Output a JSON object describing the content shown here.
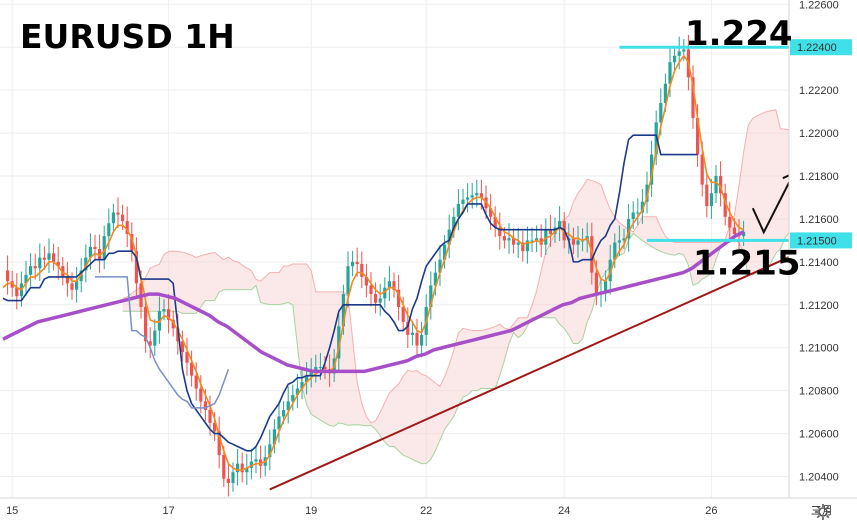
{
  "chart_data": {
    "type": "candlestick",
    "title": "EURUSD 1H",
    "ylim": [
      1.203,
      1.2262
    ],
    "y_ticks": [
      "1.22600",
      "1.22400",
      "1.22200",
      "1.22000",
      "1.21800",
      "1.21600",
      "1.21400",
      "1.21200",
      "1.21000",
      "1.20800",
      "1.20600",
      "1.20400"
    ],
    "y_tick_values": [
      1.226,
      1.224,
      1.222,
      1.22,
      1.218,
      1.216,
      1.214,
      1.212,
      1.21,
      1.208,
      1.206,
      1.204
    ],
    "x_ticks": [
      "15",
      "17",
      "19",
      "22",
      "24",
      "26",
      "三月"
    ],
    "x_tick_index": [
      2,
      36,
      67,
      92,
      122,
      154,
      178
    ],
    "levels": [
      {
        "label": "1.22400",
        "value": 1.224,
        "annotation": "1.224",
        "color": "#40e0e8",
        "x_from_index": 134,
        "x_to_index": 194
      },
      {
        "label": "1.21500",
        "value": 1.215,
        "annotation": "1.215",
        "color": "#40e0e8",
        "x_from_index": 140,
        "x_to_index": 194
      }
    ],
    "trendline": {
      "color": "#a01818",
      "points": [
        [
          58,
          1.2034
        ],
        [
          179,
          1.215
        ]
      ]
    },
    "candles": {
      "up_color": "#26a69a",
      "down_color": "#ef5350",
      "close": [
        1.2136,
        1.2131,
        1.2128,
        1.2124,
        1.213,
        1.2134,
        1.2138,
        1.2137,
        1.2142,
        1.2141,
        1.2144,
        1.214,
        1.2138,
        1.2133,
        1.213,
        1.2127,
        1.2131,
        1.2136,
        1.2142,
        1.2147,
        1.2146,
        1.2141,
        1.2152,
        1.2158,
        1.2163,
        1.2162,
        1.2159,
        1.2153,
        1.2145,
        1.213,
        1.2119,
        1.2103,
        1.2101,
        1.2108,
        1.2117,
        1.2118,
        1.2113,
        1.2109,
        1.2103,
        1.2098,
        1.2093,
        1.2087,
        1.2081,
        1.2075,
        1.2071,
        1.2065,
        1.2061,
        1.205,
        1.2039,
        1.2037,
        1.2042,
        1.2046,
        1.2042,
        1.2044,
        1.2047,
        1.2048,
        1.2045,
        1.2049,
        1.2055,
        1.2062,
        1.2068,
        1.2071,
        1.2075,
        1.2078,
        1.2081,
        1.2084,
        1.2087,
        1.2089,
        1.2091,
        1.2091,
        1.209,
        1.2088,
        1.2095,
        1.211,
        1.2125,
        1.2138,
        1.214,
        1.2139,
        1.2133,
        1.2129,
        1.2125,
        1.2121,
        1.2123,
        1.2128,
        1.2131,
        1.2127,
        1.2119,
        1.2112,
        1.2106,
        1.2107,
        1.2101,
        1.2106,
        1.2119,
        1.2129,
        1.2135,
        1.2141,
        1.2148,
        1.2155,
        1.2161,
        1.2167,
        1.2169,
        1.217,
        1.2171,
        1.2172,
        1.217,
        1.2165,
        1.2161,
        1.2156,
        1.2152,
        1.215,
        1.2151,
        1.2148,
        1.2149,
        1.2145,
        1.215,
        1.215,
        1.2151,
        1.2148,
        1.2155,
        1.2153,
        1.2156,
        1.2159,
        1.215,
        1.2151,
        1.2148,
        1.215,
        1.215,
        1.2152,
        1.2135,
        1.2125,
        1.2126,
        1.2131,
        1.2141,
        1.2149,
        1.215,
        1.2151,
        1.216,
        1.2163,
        1.2163,
        1.2168,
        1.2176,
        1.219,
        1.2205,
        1.2214,
        1.2223,
        1.2233,
        1.2236,
        1.2238,
        1.2239,
        1.2226,
        1.2207,
        1.219,
        1.2176,
        1.2166,
        1.2172,
        1.218,
        1.2172,
        1.2161,
        1.2156,
        1.2153,
        1.2152,
        1.2154
      ]
    },
    "series": [
      {
        "name": "",
        "color": "#f28a1f",
        "values": [
          1.2128,
          1.213,
          1.213,
          1.2128,
          1.2127,
          1.213,
          1.2133,
          1.2133,
          1.2135,
          1.2137,
          1.214,
          1.214,
          1.2138,
          1.2135,
          1.2134,
          1.2131,
          1.2131,
          1.2134,
          1.2138,
          1.2142,
          1.2144,
          1.2143,
          1.2145,
          1.2149,
          1.2154,
          1.2157,
          1.2157,
          1.2155,
          1.2151,
          1.2143,
          1.2133,
          1.2122,
          1.2113,
          1.2112,
          1.2112,
          1.2115,
          1.2114,
          1.2112,
          1.2108,
          1.2104,
          1.2099,
          1.2094,
          1.2089,
          1.2083,
          1.2078,
          1.2073,
          1.2067,
          1.2059,
          1.2052,
          1.2046,
          1.2044,
          1.2043,
          1.2043,
          1.2044,
          1.2045,
          1.2046,
          1.2046,
          1.2047,
          1.205,
          1.2055,
          1.2061,
          1.2066,
          1.207,
          1.2074,
          1.2078,
          1.2081,
          1.2084,
          1.2086,
          1.2088,
          1.2089,
          1.2089,
          1.2089,
          1.2091,
          1.21,
          1.2111,
          1.2123,
          1.2131,
          1.2135,
          1.2135,
          1.2133,
          1.213,
          1.2127,
          1.2125,
          1.2126,
          1.2128,
          1.2128,
          1.2125,
          1.212,
          1.2115,
          1.2112,
          1.2108,
          1.2107,
          1.2112,
          1.212,
          1.2128,
          1.2135,
          1.2141,
          1.2148,
          1.2154,
          1.216,
          1.2164,
          1.2167,
          1.2169,
          1.217,
          1.217,
          1.2168,
          1.2165,
          1.2161,
          1.2157,
          1.2154,
          1.2153,
          1.2151,
          1.215,
          1.2148,
          1.2149,
          1.2149,
          1.215,
          1.2149,
          1.2151,
          1.2152,
          1.2154,
          1.2156,
          1.2154,
          1.2153,
          1.2151,
          1.2151,
          1.215,
          1.2151,
          1.2145,
          1.2137,
          1.2132,
          1.2131,
          1.2135,
          1.2141,
          1.2145,
          1.2148,
          1.2154,
          1.2158,
          1.2161,
          1.2164,
          1.217,
          1.218,
          1.2192,
          1.2203,
          1.2212,
          1.2222,
          1.2229,
          1.2233,
          1.2236,
          1.2233,
          1.2222,
          1.2207,
          1.2193,
          1.2181,
          1.2177,
          1.2177,
          1.2175,
          1.2168,
          1.2163,
          1.2159,
          1.2156,
          1.2155
        ]
      },
      {
        "name": "",
        "color": "#1b3a8a",
        "x_start": 0,
        "x_end": 163,
        "values": [
          1.2123,
          1.2122,
          1.2122,
          1.2122,
          1.2122,
          1.2125,
          1.2128,
          1.2128,
          1.2128,
          1.2132,
          1.2133,
          1.2133,
          1.2133,
          1.2133,
          1.2133,
          1.2133,
          1.2133,
          1.2135,
          1.2137,
          1.2139,
          1.2141,
          1.2141,
          1.2141,
          1.2144,
          1.2144,
          1.2145,
          1.2145,
          1.2145,
          1.2145,
          1.2142,
          1.2132,
          1.2132,
          1.2132,
          1.2132,
          1.2132,
          1.2132,
          1.2132,
          1.213,
          1.211,
          1.209,
          1.208,
          1.2074,
          1.2071,
          1.2068,
          1.2065,
          1.2062,
          1.206,
          1.206,
          1.2058,
          1.2056,
          1.2055,
          1.2054,
          1.2053,
          1.2052,
          1.2052,
          1.2054,
          1.2058,
          1.2063,
          1.2068,
          1.2071,
          1.2074,
          1.2079,
          1.2083,
          1.2084,
          1.2086,
          1.2086,
          1.2087,
          1.2087,
          1.2087,
          1.2087,
          1.2093,
          1.21,
          1.2108,
          1.2117,
          1.212,
          1.212,
          1.212,
          1.212,
          1.212,
          1.212,
          1.212,
          1.212,
          1.212,
          1.2117,
          1.2115,
          1.2112,
          1.2108,
          1.2108,
          1.211,
          1.2118,
          1.2123,
          1.2131,
          1.2138,
          1.2141,
          1.2144,
          1.2147,
          1.2149,
          1.215,
          1.2156,
          1.216,
          1.2163,
          1.2167,
          1.2167,
          1.2167,
          1.2167,
          1.2162,
          1.2158,
          1.2156,
          1.2155,
          1.2155,
          1.2155,
          1.2155,
          1.2155,
          1.2155,
          1.2155,
          1.2155,
          1.2155,
          1.2155,
          1.2155,
          1.2155,
          1.2155,
          1.2156,
          1.2155,
          1.215,
          1.214,
          1.214,
          1.2141,
          1.2141,
          1.2141,
          1.2146,
          1.215,
          1.2152,
          1.2157,
          1.216,
          1.2172,
          1.2186,
          1.2197,
          1.2199,
          1.2199,
          1.2199,
          1.2199,
          1.2199,
          1.2199,
          1.219,
          1.219,
          1.219,
          1.219,
          1.219,
          1.219,
          1.219,
          1.219,
          1.219
        ]
      },
      {
        "name": "",
        "color": "#a64fc9",
        "width": 3.5,
        "values": [
          1.2104,
          1.2106,
          1.2108,
          1.211,
          1.2112,
          1.2113,
          1.2114,
          1.2115,
          1.2116,
          1.2117,
          1.2118,
          1.2119,
          1.212,
          1.2121,
          1.2122,
          1.2123,
          1.2124,
          1.2125,
          1.2125,
          1.2124,
          1.2123,
          1.2121,
          1.2119,
          1.2117,
          1.2115,
          1.2112,
          1.211,
          1.2107,
          1.2104,
          1.2101,
          1.2098,
          1.2096,
          1.2094,
          1.2092,
          1.2091,
          1.209,
          1.2089,
          1.2089,
          1.2089,
          1.2089,
          1.2089,
          1.2089,
          1.2089,
          1.209,
          1.2091,
          1.2092,
          1.2093,
          1.2094,
          1.2096,
          1.2097,
          1.2099,
          1.21,
          1.2101,
          1.2102,
          1.2103,
          1.2104,
          1.2105,
          1.2106,
          1.2107,
          1.2108,
          1.211,
          1.2112,
          1.2114,
          1.2116,
          1.2118,
          1.212,
          1.2121,
          1.2123,
          1.2124,
          1.2125,
          1.2126,
          1.2127,
          1.2128,
          1.2129,
          1.213,
          1.2131,
          1.2132,
          1.2133,
          1.2134,
          1.2135,
          1.2137,
          1.214,
          1.2143,
          1.2146,
          1.2149,
          1.2152,
          1.2154
        ]
      },
      {
        "name": "",
        "color": "#7a8fc4",
        "values": [
          1.2133,
          1.2133,
          1.2133,
          1.2133,
          1.2133,
          1.2133,
          1.2133,
          1.2133,
          1.2108,
          1.2108,
          1.2106,
          1.2105,
          1.21,
          1.2094,
          1.209,
          1.2087,
          1.2084,
          1.2081,
          1.2078,
          1.2076,
          1.2075,
          1.2072,
          1.2072,
          1.2072,
          1.2072,
          1.2073,
          1.2074,
          1.2078,
          1.2084,
          1.209
        ]
      }
    ],
    "cloud": {
      "up_color": "#c9e6c4",
      "down_color": "#f7cccc"
    }
  }
}
